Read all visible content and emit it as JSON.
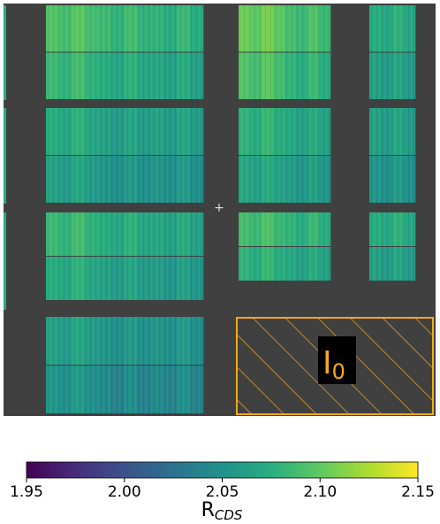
{
  "chart_data": {
    "type": "heatmap",
    "title": "",
    "colormap": "viridis",
    "background_color": "#404040",
    "colorbar": {
      "ticks": [
        1.95,
        2.0,
        2.05,
        2.1,
        2.15
      ],
      "tick_labels": [
        "1.95",
        "2.00",
        "2.05",
        "2.10",
        "2.15"
      ],
      "range": [
        1.95,
        2.15
      ],
      "label_main": "R",
      "label_sub": "CDS"
    },
    "region_annotation": {
      "label_main": "I",
      "label_sub": "0",
      "color": "#f5a81c"
    },
    "center_marker": "+",
    "panel_mean_values": [
      [
        2.09,
        2.08,
        2.075,
        2.1,
        2.085,
        2.07,
        2.1
      ],
      [
        2.07,
        2.06,
        2.06,
        2.075,
        2.065,
        2.06,
        2.08
      ],
      [
        2.08,
        2.07,
        2.065,
        2.085,
        2.075,
        2.07,
        2.09
      ],
      [
        2.06,
        2.05,
        2.05,
        2.07,
        2.06,
        2.05,
        2.07
      ]
    ]
  }
}
